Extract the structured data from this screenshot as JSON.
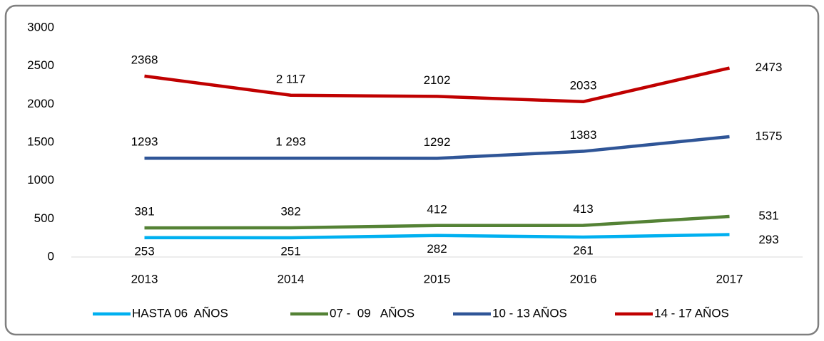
{
  "chart_data": {
    "type": "line",
    "categories": [
      "2013",
      "2014",
      "2015",
      "2016",
      "2017"
    ],
    "series": [
      {
        "name": "HASTA 06  AÑOS",
        "color": "#00b0f0",
        "values": [
          253,
          251,
          282,
          261,
          293
        ],
        "value_labels": [
          "253",
          "251",
          "282",
          "261",
          "293"
        ]
      },
      {
        "name": "07 -  09   AÑOS",
        "color": "#548235",
        "values": [
          381,
          382,
          412,
          413,
          531
        ],
        "value_labels": [
          "381",
          "382",
          "412",
          "413",
          "531"
        ]
      },
      {
        "name": "10 - 13 AÑOS",
        "color": "#2f5597",
        "values": [
          1293,
          1293,
          1292,
          1383,
          1575
        ],
        "value_labels": [
          "1293",
          "1 293",
          "1292",
          "1383",
          "1575"
        ]
      },
      {
        "name": "14 - 17 AÑOS",
        "color": "#c00000",
        "values": [
          2368,
          2117,
          2102,
          2033,
          2473
        ],
        "value_labels": [
          "2368",
          "2 117",
          "2102",
          "2033",
          "2473"
        ]
      }
    ],
    "ylim": [
      0,
      3000
    ],
    "yticks": [
      0,
      500,
      1000,
      1500,
      2000,
      2500,
      3000
    ],
    "grid": false,
    "legend": "bottom"
  }
}
